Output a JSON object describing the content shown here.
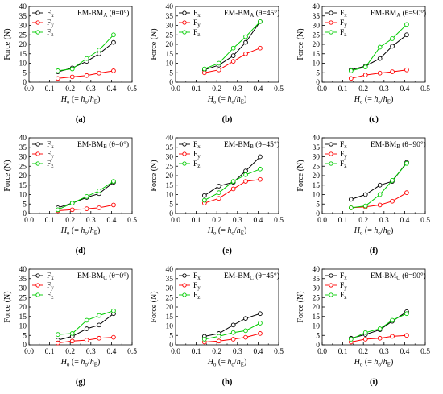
{
  "chart_data": [
    {
      "panel_label": "(a)",
      "title_prefix": "EM-BM",
      "title_sub": "A",
      "title_suffix": " (θ=0°)",
      "type": "line",
      "xlabel": "",
      "ylabel": "Force (N)",
      "xlim": [
        0.0,
        0.5
      ],
      "ylim": [
        0,
        40
      ],
      "x_ticks": [
        "0.0",
        "0.1",
        "0.2",
        "0.3",
        "0.4",
        "0.5"
      ],
      "y_ticks": [
        "0",
        "5",
        "10",
        "15",
        "20",
        "25",
        "30",
        "35",
        "40"
      ],
      "x": [
        0.14,
        0.21,
        0.28,
        0.34,
        0.41
      ],
      "series": [
        {
          "name": "Fx",
          "color": "#000000",
          "values": [
            5.5,
            7.5,
            11.0,
            15.0,
            21.0
          ]
        },
        {
          "name": "Fy",
          "color": "#ff0000",
          "values": [
            2.0,
            2.8,
            3.5,
            4.8,
            6.0
          ]
        },
        {
          "name": "Fz",
          "color": "#00cc00",
          "values": [
            6.0,
            7.0,
            12.5,
            17.0,
            25.0
          ]
        }
      ]
    },
    {
      "panel_label": "(b)",
      "title_prefix": "EM-BM",
      "title_sub": "A",
      "title_suffix": " (θ=45°)",
      "type": "line",
      "xlabel": "",
      "ylabel": "Force (N)",
      "xlim": [
        0.0,
        0.5
      ],
      "ylim": [
        0,
        40
      ],
      "x_ticks": [
        "0.0",
        "0.1",
        "0.2",
        "0.3",
        "0.4",
        "0.5"
      ],
      "y_ticks": [
        "0",
        "5",
        "10",
        "15",
        "20",
        "25",
        "30",
        "35",
        "40"
      ],
      "x": [
        0.14,
        0.21,
        0.28,
        0.34,
        0.41
      ],
      "series": [
        {
          "name": "Fx",
          "color": "#000000",
          "values": [
            6.5,
            9.0,
            14.0,
            21.0,
            32.0
          ]
        },
        {
          "name": "Fy",
          "color": "#ff0000",
          "values": [
            5.0,
            6.5,
            11.0,
            15.0,
            18.0
          ]
        },
        {
          "name": "Fz",
          "color": "#00cc00",
          "values": [
            7.0,
            10.0,
            18.0,
            24.0,
            32.0
          ]
        }
      ]
    },
    {
      "panel_label": "(c)",
      "title_prefix": "EM-BM",
      "title_sub": "A",
      "title_suffix": " (θ=90°)",
      "type": "line",
      "xlabel": "",
      "ylabel": "Force (N)",
      "xlim": [
        0.0,
        0.5
      ],
      "ylim": [
        0,
        40
      ],
      "x_ticks": [
        "0.0",
        "0.1",
        "0.2",
        "0.3",
        "0.4",
        "0.5"
      ],
      "y_ticks": [
        "0",
        "5",
        "10",
        "15",
        "20",
        "25",
        "30",
        "35",
        "40"
      ],
      "x": [
        0.14,
        0.21,
        0.28,
        0.34,
        0.41
      ],
      "series": [
        {
          "name": "Fx",
          "color": "#000000",
          "values": [
            6.5,
            8.5,
            12.5,
            19.0,
            25.0
          ]
        },
        {
          "name": "Fy",
          "color": "#ff0000",
          "values": [
            2.0,
            3.8,
            4.8,
            5.5,
            6.5
          ]
        },
        {
          "name": "Fz",
          "color": "#00cc00",
          "values": [
            6.0,
            8.0,
            18.5,
            23.0,
            30.5
          ]
        }
      ]
    },
    {
      "panel_label": "(d)",
      "title_prefix": "EM-BM",
      "title_sub": "B",
      "title_suffix": " (θ=0°)",
      "type": "line",
      "xlabel": "",
      "ylabel": "Force (N)",
      "xlim": [
        0.0,
        0.5
      ],
      "ylim": [
        0,
        40
      ],
      "x_ticks": [
        "0.0",
        "0.1",
        "0.2",
        "0.3",
        "0.4",
        "0.5"
      ],
      "y_ticks": [
        "0",
        "5",
        "10",
        "15",
        "20",
        "25",
        "30",
        "35",
        "40"
      ],
      "x": [
        0.14,
        0.21,
        0.28,
        0.34,
        0.41
      ],
      "series": [
        {
          "name": "Fx",
          "color": "#000000",
          "values": [
            3.0,
            5.5,
            8.5,
            10.5,
            16.5
          ]
        },
        {
          "name": "Fy",
          "color": "#ff0000",
          "values": [
            1.5,
            2.0,
            2.5,
            3.0,
            4.5
          ]
        },
        {
          "name": "Fz",
          "color": "#00cc00",
          "values": [
            2.0,
            5.5,
            9.0,
            12.0,
            17.0
          ]
        }
      ]
    },
    {
      "panel_label": "(e)",
      "title_prefix": "EM-BM",
      "title_sub": "B",
      "title_suffix": " (θ=45°)",
      "type": "line",
      "xlabel": "",
      "ylabel": "Force (N)",
      "xlim": [
        0.0,
        0.5
      ],
      "ylim": [
        0,
        40
      ],
      "x_ticks": [
        "0.0",
        "0.1",
        "0.2",
        "0.3",
        "0.4",
        "0.5"
      ],
      "y_ticks": [
        "0",
        "5",
        "10",
        "15",
        "20",
        "25",
        "30",
        "35",
        "40"
      ],
      "x": [
        0.14,
        0.21,
        0.28,
        0.34,
        0.41
      ],
      "series": [
        {
          "name": "Fx",
          "color": "#000000",
          "values": [
            9.5,
            14.5,
            16.5,
            22.5,
            30.0
          ]
        },
        {
          "name": "Fy",
          "color": "#ff0000",
          "values": [
            5.5,
            8.0,
            13.0,
            17.0,
            18.0
          ]
        },
        {
          "name": "Fz",
          "color": "#00cc00",
          "values": [
            7.0,
            11.0,
            17.0,
            20.5,
            23.5
          ]
        }
      ]
    },
    {
      "panel_label": "(f)",
      "title_prefix": "EM-BM",
      "title_sub": "B",
      "title_suffix": " (θ=90°)",
      "type": "line",
      "xlabel": "",
      "ylabel": "Force (N)",
      "xlim": [
        0.0,
        0.5
      ],
      "ylim": [
        0,
        40
      ],
      "x_ticks": [
        "0.0",
        "0.1",
        "0.2",
        "0.3",
        "0.4",
        "0.5"
      ],
      "y_ticks": [
        "0",
        "5",
        "10",
        "15",
        "20",
        "25",
        "30",
        "35",
        "40"
      ],
      "x": [
        0.14,
        0.21,
        0.28,
        0.34,
        0.41
      ],
      "series": [
        {
          "name": "Fx",
          "color": "#000000",
          "values": [
            7.5,
            10.0,
            15.0,
            17.0,
            27.0
          ]
        },
        {
          "name": "Fy",
          "color": "#ff0000",
          "values": [
            3.0,
            3.5,
            4.5,
            6.5,
            11.0
          ]
        },
        {
          "name": "Fz",
          "color": "#00cc00",
          "values": [
            3.0,
            4.0,
            10.0,
            17.5,
            26.5
          ]
        }
      ]
    },
    {
      "panel_label": "(g)",
      "title_prefix": "EM-BM",
      "title_sub": "C",
      "title_suffix": " (θ=0°)",
      "type": "line",
      "xlabel": "",
      "ylabel": "Force (N)",
      "xlim": [
        0.0,
        0.5
      ],
      "ylim": [
        0,
        40
      ],
      "x_ticks": [
        "0.0",
        "0.1",
        "0.2",
        "0.3",
        "0.4",
        "0.5"
      ],
      "y_ticks": [
        "0",
        "5",
        "10",
        "15",
        "20",
        "25",
        "30",
        "35",
        "40"
      ],
      "x": [
        0.14,
        0.21,
        0.28,
        0.34,
        0.41
      ],
      "series": [
        {
          "name": "Fx",
          "color": "#000000",
          "values": [
            2.5,
            4.5,
            8.5,
            10.5,
            16.5
          ]
        },
        {
          "name": "Fy",
          "color": "#ff0000",
          "values": [
            1.0,
            2.0,
            2.5,
            3.5,
            4.0
          ]
        },
        {
          "name": "Fz",
          "color": "#00cc00",
          "values": [
            5.5,
            6.0,
            13.0,
            15.5,
            18.0
          ]
        }
      ]
    },
    {
      "panel_label": "(h)",
      "title_prefix": "EM-BM",
      "title_sub": "C",
      "title_suffix": " (θ=45°)",
      "type": "line",
      "xlabel": "",
      "ylabel": "Force (N)",
      "xlim": [
        0.0,
        0.5
      ],
      "ylim": [
        0,
        40
      ],
      "x_ticks": [
        "0.0",
        "0.1",
        "0.2",
        "0.3",
        "0.4",
        "0.5"
      ],
      "y_ticks": [
        "0",
        "5",
        "10",
        "15",
        "20",
        "25",
        "30",
        "35",
        "40"
      ],
      "x": [
        0.14,
        0.21,
        0.28,
        0.34,
        0.41
      ],
      "series": [
        {
          "name": "Fx",
          "color": "#000000",
          "values": [
            4.5,
            6.0,
            10.5,
            14.0,
            16.5
          ]
        },
        {
          "name": "Fy",
          "color": "#ff0000",
          "values": [
            1.5,
            2.0,
            3.0,
            4.0,
            6.0
          ]
        },
        {
          "name": "Fz",
          "color": "#00cc00",
          "values": [
            3.0,
            4.5,
            6.5,
            7.5,
            11.5
          ]
        }
      ]
    },
    {
      "panel_label": "(i)",
      "title_prefix": "EM-BM",
      "title_sub": "C",
      "title_suffix": " (θ=90°)",
      "type": "line",
      "xlabel": "",
      "ylabel": "Force (N)",
      "xlim": [
        0.0,
        0.5
      ],
      "ylim": [
        0,
        40
      ],
      "x_ticks": [
        "0.0",
        "0.1",
        "0.2",
        "0.3",
        "0.4",
        "0.5"
      ],
      "y_ticks": [
        "0",
        "5",
        "10",
        "15",
        "20",
        "25",
        "30",
        "35",
        "40"
      ],
      "x": [
        0.14,
        0.21,
        0.28,
        0.34,
        0.41
      ],
      "series": [
        {
          "name": "Fx",
          "color": "#000000",
          "values": [
            3.5,
            5.5,
            8.0,
            12.5,
            17.5
          ]
        },
        {
          "name": "Fy",
          "color": "#ff0000",
          "values": [
            1.5,
            3.0,
            3.5,
            4.5,
            5.0
          ]
        },
        {
          "name": "Fz",
          "color": "#00cc00",
          "values": [
            3.0,
            6.5,
            8.5,
            13.0,
            16.5
          ]
        }
      ]
    }
  ],
  "xlabel_parts": {
    "H": "H",
    "o": "o",
    "eq": " (= ",
    "h": "h",
    "slash": "/",
    "hE": "h",
    "E": "E",
    "close": ")"
  },
  "legend_parts": {
    "F": "F",
    "sub_x": "x",
    "sub_y": "y",
    "sub_z": "z"
  }
}
